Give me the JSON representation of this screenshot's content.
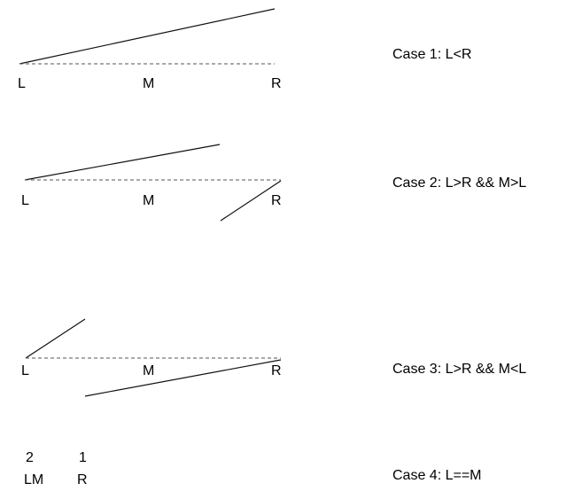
{
  "cases": [
    {
      "caption": "Case 1: L<R",
      "labels": [
        "L",
        "M",
        "R"
      ]
    },
    {
      "caption": "Case 2: L>R && M>L",
      "labels": [
        "L",
        "M",
        "R"
      ]
    },
    {
      "caption": "Case 3: L>R && M<L",
      "labels": [
        "L",
        "M",
        "R"
      ]
    },
    {
      "caption": "Case 4: L==M",
      "top_labels": [
        "2",
        "1"
      ],
      "labels": [
        "LM",
        "R"
      ]
    }
  ]
}
